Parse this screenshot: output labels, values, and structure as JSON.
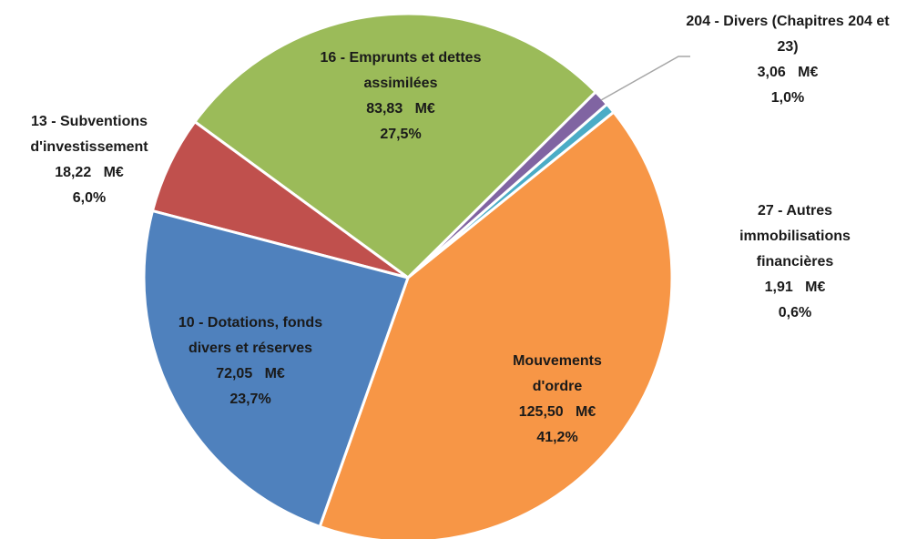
{
  "chart_data": {
    "type": "pie",
    "categories": [
      "10 - Dotations, fonds divers et réserves",
      "13 - Subventions d'investissement",
      "16 - Emprunts et dettes assimilées",
      "204 - Divers (Chapitres 204 et 23)",
      "27 - Autres immobilisations financières",
      "Mouvements d'ordre"
    ],
    "values": [
      72.05,
      18.22,
      83.83,
      3.06,
      1.91,
      125.5
    ],
    "value_labels": [
      "72,05   M€",
      "18,22   M€",
      "83,83   M€",
      "3,06   M€",
      "1,91   M€",
      "125,50   M€"
    ],
    "percents": [
      23.7,
      6.0,
      27.5,
      1.0,
      0.6,
      41.2
    ],
    "percent_labels": [
      "23,7%",
      "6,0%",
      "27,5%",
      "1,0%",
      "0,6%",
      "41,2%"
    ],
    "colors": [
      "#4f81bd",
      "#c0504d",
      "#9bbb59",
      "#8064a2",
      "#4bacc6",
      "#f79646"
    ]
  }
}
